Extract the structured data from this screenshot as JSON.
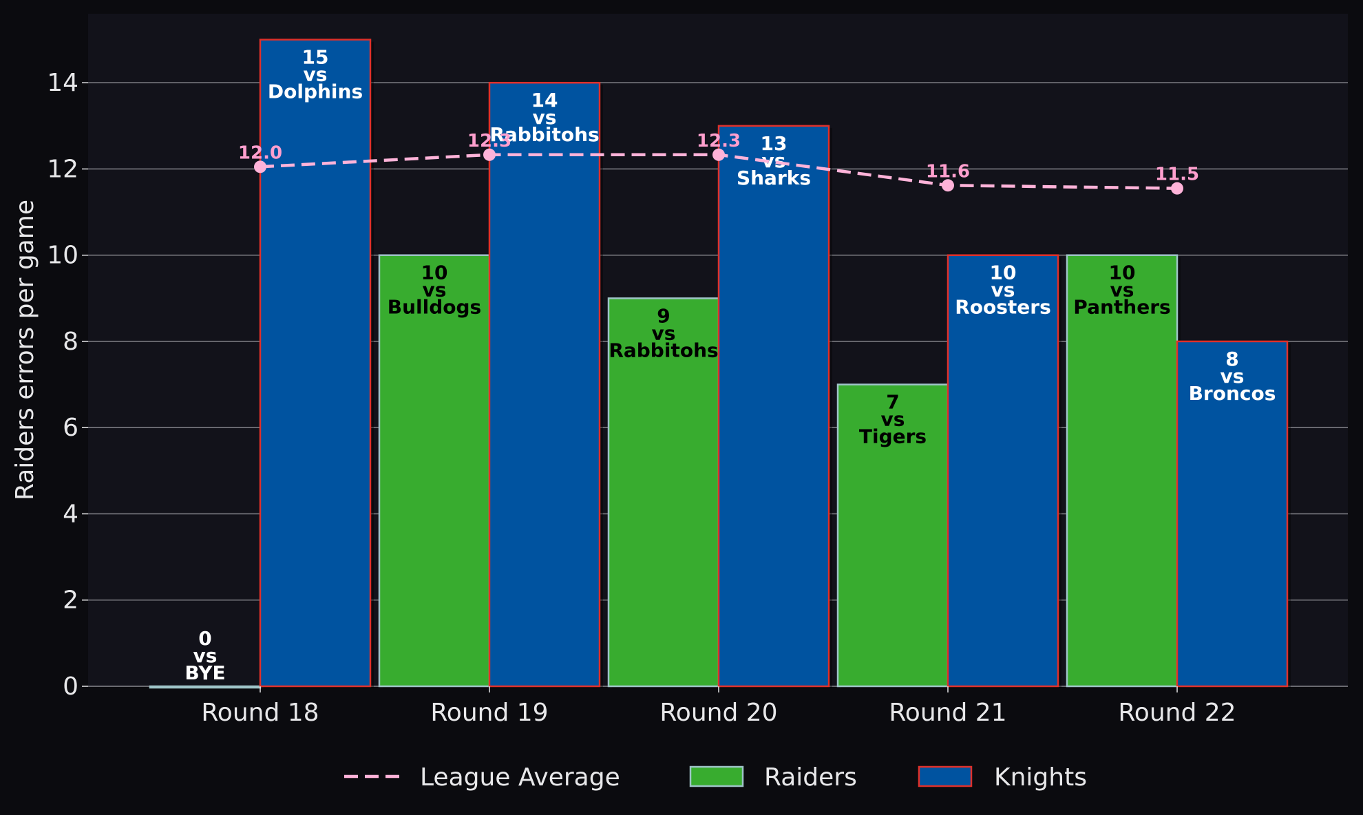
{
  "chart_data": {
    "type": "bar",
    "categories": [
      "Round 18",
      "Round 19",
      "Round 20",
      "Round 21",
      "Round 22"
    ],
    "ylabel": "Raiders errors per game",
    "ylim": [
      0,
      15.6
    ],
    "yticks": [
      0,
      2,
      4,
      6,
      8,
      10,
      12,
      14
    ],
    "grid": true,
    "legend_position": "bottom-center",
    "series": [
      {
        "name": "Raiders",
        "type": "bar",
        "color": "#38ac2f",
        "edge_color": "#9fc4c8",
        "label_color": "#000000",
        "values": [
          0,
          10,
          9,
          7,
          10
        ],
        "opponents": [
          "BYE",
          "Bulldogs",
          "Rabbitohs",
          "Tigers",
          "Panthers"
        ],
        "labels": [
          [
            "0",
            "vs",
            "BYE"
          ],
          [
            "10",
            "vs",
            "Bulldogs"
          ],
          [
            "9",
            "vs",
            "Rabbitohs"
          ],
          [
            "7",
            "vs",
            "Tigers"
          ],
          [
            "10",
            "vs",
            "Panthers"
          ]
        ]
      },
      {
        "name": "Knights",
        "type": "bar",
        "color": "#0053a0",
        "edge_color": "#e0302a",
        "label_color": "#ffffff",
        "values": [
          15,
          14,
          13,
          10,
          8
        ],
        "opponents": [
          "Dolphins",
          "Rabbitohs",
          "Sharks",
          "Roosters",
          "Broncos"
        ],
        "labels": [
          [
            "15",
            "vs",
            "Dolphins"
          ],
          [
            "14",
            "vs",
            "Rabbitohs"
          ],
          [
            "13",
            "vs",
            "Sharks"
          ],
          [
            "10",
            "vs",
            "Roosters"
          ],
          [
            "8",
            "vs",
            "Broncos"
          ]
        ]
      },
      {
        "name": "League Average",
        "type": "line",
        "style": "dashed",
        "color": "#ffb3d9",
        "values": [
          12.05,
          12.33,
          12.33,
          11.62,
          11.55
        ],
        "labels": [
          "12.0",
          "12.3",
          "12.3",
          "11.6",
          "11.5"
        ]
      }
    ]
  },
  "colors": {
    "background": "#0b0b0f",
    "plot_background": "#12121a",
    "grid": "#7a7a80"
  }
}
